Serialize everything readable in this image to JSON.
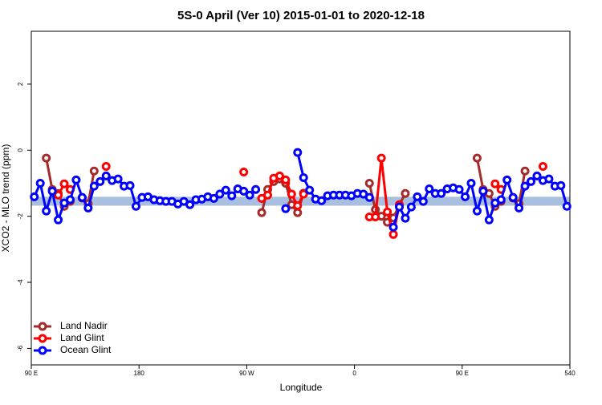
{
  "chart_data": {
    "type": "line",
    "title": "5S-0 April (Ver 10)   2015-01-01 to 2020-12-18",
    "xlabel": "Longitude",
    "ylabel": "XCO2 - MLO trend (ppm)",
    "xlim": [
      90,
      540
    ],
    "ylim": [
      -6.5,
      3.6
    ],
    "xticks": [
      {
        "value": 90,
        "label": "90 E"
      },
      180,
      {
        "value": 270,
        "label": "90 W"
      },
      {
        "value": 360,
        "label": "0"
      },
      {
        "value": 450,
        "label": "90 E"
      },
      540
    ],
    "yticks": [
      2,
      0,
      -2,
      -4,
      -6
    ],
    "band": {
      "color": "#a9bfdf",
      "range": [
        -1.68,
        -1.41
      ]
    },
    "legend": "bottom-left",
    "x": [
      92.5,
      97.5,
      102.5,
      107.5,
      112.5,
      117.5,
      122.5,
      127.5,
      132.5,
      137.5,
      142.5,
      147.5,
      152.5,
      157.5,
      162.5,
      167.5,
      172.5,
      177.5,
      182.5,
      187.5,
      192.5,
      197.5,
      202.5,
      207.5,
      212.5,
      217.5,
      222.5,
      227.5,
      232.5,
      237.5,
      242.5,
      247.5,
      252.5,
      257.5,
      262.5,
      267.5,
      272.5,
      277.5,
      282.5,
      287.5,
      292.5,
      297.5,
      302.5,
      307.5,
      312.5,
      317.5,
      322.5,
      327.5,
      332.5,
      337.5,
      342.5,
      347.5,
      352.5,
      357.5,
      362.5,
      367.5,
      372.5,
      377.5,
      382.5,
      387.5,
      392.5,
      397.5,
      402.5,
      407.5,
      412.5,
      417.5,
      422.5,
      427.5,
      432.5,
      437.5,
      442.5,
      447.5,
      452.5,
      457.5,
      462.5,
      467.5,
      472.5,
      477.5,
      482.5,
      487.5,
      492.5,
      497.5,
      502.5,
      507.5,
      512.5,
      517.5,
      522.5,
      527.5,
      532.5,
      537.5
    ],
    "series": [
      {
        "name": "Land Nadir",
        "color": "#a52a2a",
        "values": [
          null,
          null,
          -0.24,
          -1.19,
          -1.31,
          -1.7,
          -1.55,
          null,
          -1.45,
          -1.62,
          -0.63,
          null,
          null,
          null,
          null,
          null,
          null,
          null,
          null,
          null,
          null,
          null,
          null,
          null,
          null,
          null,
          null,
          null,
          null,
          null,
          null,
          null,
          null,
          null,
          null,
          null,
          null,
          null,
          -1.89,
          -1.19,
          -0.95,
          -0.87,
          -1.0,
          -1.65,
          -1.89,
          -1.3,
          null,
          null,
          null,
          null,
          null,
          null,
          null,
          null,
          null,
          null,
          -1.0,
          -1.8,
          -2.0,
          -2.18,
          -2.05,
          -1.65,
          -1.31,
          null,
          null,
          null,
          null,
          null,
          null,
          null,
          null,
          null,
          null,
          null,
          -0.24,
          -1.19,
          -1.31,
          -1.7,
          -1.55,
          null,
          -1.45,
          -1.62,
          -0.63,
          null,
          null,
          null,
          null,
          null,
          null,
          null
        ]
      },
      {
        "name": "Land Glint",
        "color": "#ff0000",
        "values": [
          null,
          null,
          null,
          null,
          -1.36,
          -1.02,
          -1.19,
          null,
          null,
          null,
          null,
          null,
          -0.49,
          null,
          null,
          null,
          null,
          null,
          null,
          null,
          null,
          null,
          null,
          null,
          null,
          null,
          null,
          null,
          null,
          null,
          null,
          null,
          null,
          null,
          null,
          -0.66,
          null,
          null,
          -1.46,
          -1.36,
          -0.85,
          -0.78,
          -0.9,
          -1.33,
          -1.68,
          -1.33,
          null,
          null,
          null,
          null,
          null,
          null,
          null,
          null,
          null,
          null,
          -2.02,
          -2.02,
          -0.24,
          -1.87,
          -2.55,
          -1.65,
          null,
          null,
          null,
          null,
          null,
          null,
          null,
          null,
          null,
          null,
          null,
          null,
          null,
          null,
          null,
          -1.02,
          -1.19,
          null,
          null,
          null,
          null,
          null,
          null,
          -0.49,
          null,
          null,
          null,
          null
        ]
      },
      {
        "name": "Ocean Glint",
        "color": "#0000ff",
        "values": [
          -1.41,
          -1.0,
          -1.84,
          -1.24,
          -2.11,
          -1.6,
          -1.5,
          -0.9,
          -1.43,
          -1.75,
          -1.09,
          -0.95,
          -0.78,
          -0.92,
          -0.87,
          -1.09,
          -1.07,
          -1.7,
          -1.43,
          -1.41,
          -1.5,
          -1.53,
          -1.55,
          -1.55,
          -1.63,
          -1.55,
          -1.65,
          -1.5,
          -1.48,
          -1.41,
          -1.46,
          -1.33,
          -1.21,
          -1.38,
          -1.17,
          -1.24,
          -1.36,
          -1.19,
          null,
          null,
          null,
          null,
          -1.77,
          null,
          -0.07,
          -0.83,
          -1.21,
          -1.48,
          -1.53,
          -1.38,
          -1.36,
          -1.36,
          -1.36,
          -1.38,
          -1.31,
          -1.33,
          -1.43,
          null,
          null,
          null,
          -2.33,
          -1.72,
          -2.06,
          -1.72,
          -1.41,
          -1.55,
          -1.17,
          -1.31,
          -1.31,
          -1.17,
          -1.14,
          -1.19,
          -1.41,
          -1.0,
          -1.84,
          -1.24,
          -2.11,
          -1.6,
          -1.5,
          -0.9,
          -1.43,
          -1.75,
          -1.09,
          -0.95,
          -0.78,
          -0.92,
          -0.87,
          -1.09,
          -1.07,
          -1.7
        ]
      }
    ]
  }
}
